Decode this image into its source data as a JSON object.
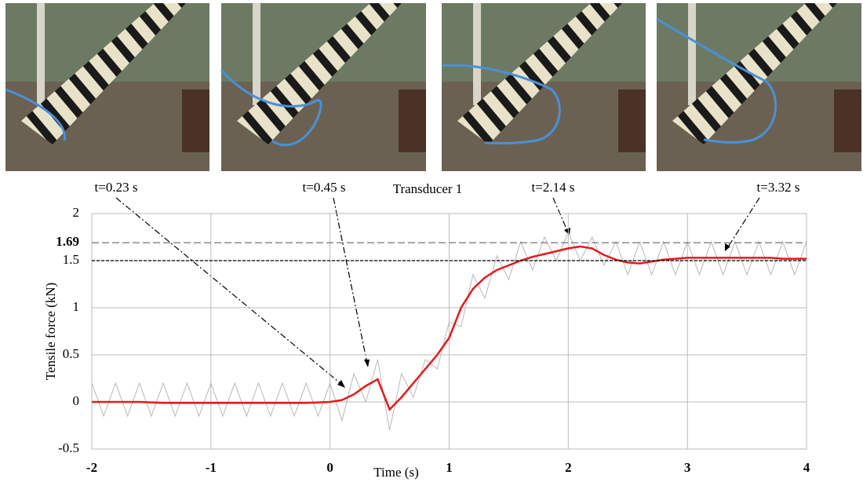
{
  "chart_data": {
    "type": "line",
    "title": "Transducer 1",
    "x_label": "Time (s)",
    "y_label": "Tensile force (kN)",
    "annotations": [
      "t=0.23 s",
      "t=0.45 s",
      "t=2.14 s",
      "t=3.32 s"
    ],
    "x": [
      -2,
      -1.9,
      -1.8,
      -1.7,
      -1.6,
      -1.5,
      -1.4,
      -1.3,
      -1.2,
      -1.1,
      -1,
      -0.9,
      -0.8,
      -0.7,
      -0.6,
      -0.5,
      -0.4,
      -0.3,
      -0.2,
      -0.1,
      0,
      0.1,
      0.2,
      0.3,
      0.4,
      0.5,
      0.6,
      0.7,
      0.8,
      0.9,
      1,
      1.1,
      1.2,
      1.3,
      1.4,
      1.5,
      1.6,
      1.7,
      1.8,
      1.9,
      2,
      2.1,
      2.2,
      2.3,
      2.4,
      2.5,
      2.6,
      2.7,
      2.8,
      2.9,
      3,
      3.1,
      3.2,
      3.3,
      3.4,
      3.5,
      3.6,
      3.7,
      3.8,
      3.9,
      4
    ],
    "series": [
      {
        "color": "#b8b8b8",
        "values": [
          0.2,
          -0.15,
          0.2,
          -0.15,
          0.2,
          -0.15,
          0.2,
          -0.15,
          0.2,
          -0.15,
          0.2,
          -0.15,
          0.2,
          -0.15,
          0.2,
          -0.15,
          0.2,
          -0.15,
          0.2,
          -0.15,
          0.2,
          -0.2,
          0.3,
          0.0,
          0.45,
          -0.3,
          0.3,
          0.05,
          0.45,
          0.35,
          0.85,
          0.8,
          1.35,
          1.1,
          1.55,
          1.3,
          1.7,
          1.4,
          1.75,
          1.5,
          1.8,
          1.5,
          1.75,
          1.45,
          1.7,
          1.35,
          1.7,
          1.35,
          1.7,
          1.35,
          1.7,
          1.35,
          1.7,
          1.35,
          1.7,
          1.35,
          1.7,
          1.35,
          1.7,
          1.35,
          1.7
        ]
      },
      {
        "color": "#e31a1c",
        "values": [
          0,
          0,
          0,
          0,
          0,
          -0.005,
          -0.01,
          -0.01,
          -0.01,
          -0.01,
          -0.01,
          -0.01,
          -0.01,
          -0.01,
          -0.01,
          -0.01,
          -0.01,
          -0.01,
          -0.01,
          -0.005,
          0,
          0.02,
          0.08,
          0.17,
          0.24,
          -0.08,
          0.05,
          0.2,
          0.35,
          0.5,
          0.68,
          1.0,
          1.2,
          1.32,
          1.4,
          1.45,
          1.5,
          1.54,
          1.57,
          1.6,
          1.63,
          1.65,
          1.63,
          1.56,
          1.51,
          1.48,
          1.47,
          1.49,
          1.51,
          1.52,
          1.53,
          1.53,
          1.53,
          1.53,
          1.53,
          1.53,
          1.53,
          1.53,
          1.52,
          1.52,
          1.52
        ]
      }
    ],
    "xlim": [
      -2,
      4
    ],
    "xticks": [
      -2,
      -1,
      0,
      1,
      2,
      3,
      4
    ],
    "ylim": [
      -0.5,
      2
    ],
    "yticks": [
      -0.5,
      0,
      0.5,
      1,
      1.5,
      2
    ],
    "reference_lines": [
      1.69,
      1.5
    ],
    "grid": true
  }
}
